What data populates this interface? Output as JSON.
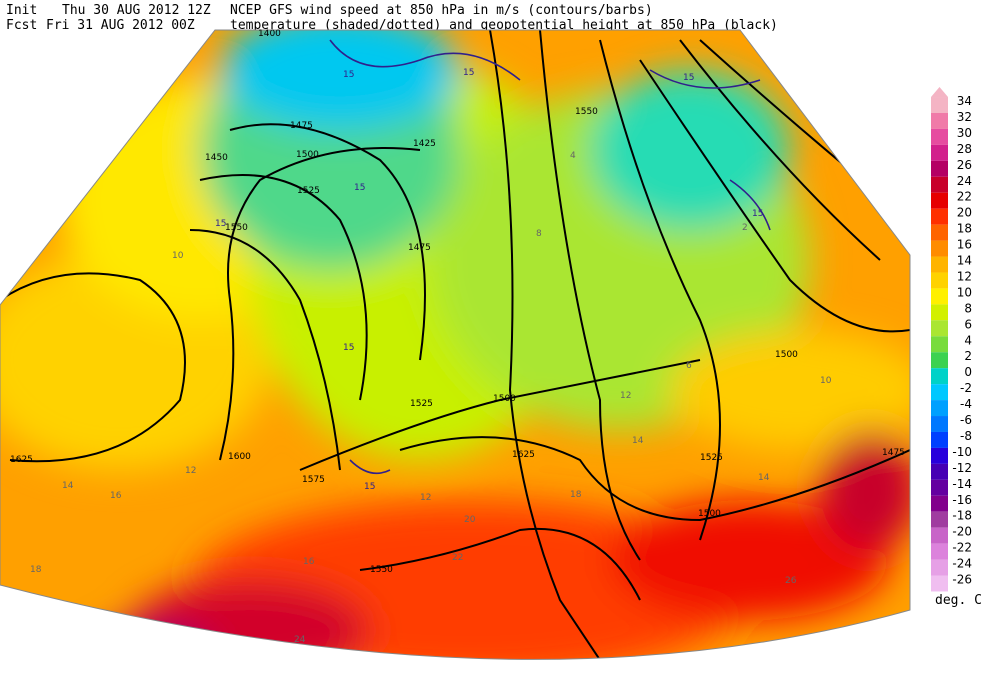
{
  "header": {
    "init_label": "Init",
    "init_time": "Thu 30 AUG 2012 12Z",
    "fcst_label": "Fcst",
    "fcst_time": "Fri 31 AUG 2012 00Z",
    "title_line1": "NCEP GFS wind speed at 850 hPa in m/s (contours/barbs)",
    "title_line2": "temperature (shaded/dotted) and geopotential height at 850 hPa (black)"
  },
  "colorbar": {
    "unit": "deg. C",
    "levels": [
      34,
      32,
      30,
      28,
      26,
      24,
      22,
      20,
      18,
      16,
      14,
      12,
      10,
      8,
      6,
      4,
      2,
      0,
      -2,
      -4,
      -6,
      -8,
      -10,
      -12,
      -14,
      -16,
      -18,
      -20,
      -22,
      -24,
      -26
    ],
    "colors": [
      "#f4b4c4",
      "#f07aa8",
      "#e64ca0",
      "#d2208c",
      "#b40064",
      "#c8002a",
      "#e60000",
      "#ff3000",
      "#ff6400",
      "#ff8c00",
      "#ffb400",
      "#ffd200",
      "#fff000",
      "#d2f000",
      "#aae632",
      "#78dc3c",
      "#3cd250",
      "#00d2c8",
      "#00c8ff",
      "#00a0ff",
      "#0078ff",
      "#0040ff",
      "#2800dc",
      "#4600b4",
      "#6400a0",
      "#82008c",
      "#a03ca0",
      "#c864c8",
      "#dc82dc",
      "#e6a0e6",
      "#f0bef0"
    ]
  },
  "map": {
    "height_labels": [
      "1400",
      "1450",
      "1475",
      "1500",
      "1525",
      "1550",
      "1425",
      "1475",
      "1550",
      "1500",
      "1525",
      "1500",
      "1625",
      "1600",
      "1575",
      "1625",
      "1525",
      "1550",
      "1500",
      "1475"
    ],
    "wind_labels": [
      "15",
      "15",
      "15",
      "15",
      "15",
      "15",
      "15",
      "15"
    ],
    "temp_labels": [
      "10",
      "12",
      "14",
      "16",
      "18",
      "20",
      "22",
      "24",
      "26",
      "12",
      "14",
      "16",
      "18",
      "10",
      "8",
      "6",
      "4",
      "2",
      "12",
      "14"
    ]
  }
}
